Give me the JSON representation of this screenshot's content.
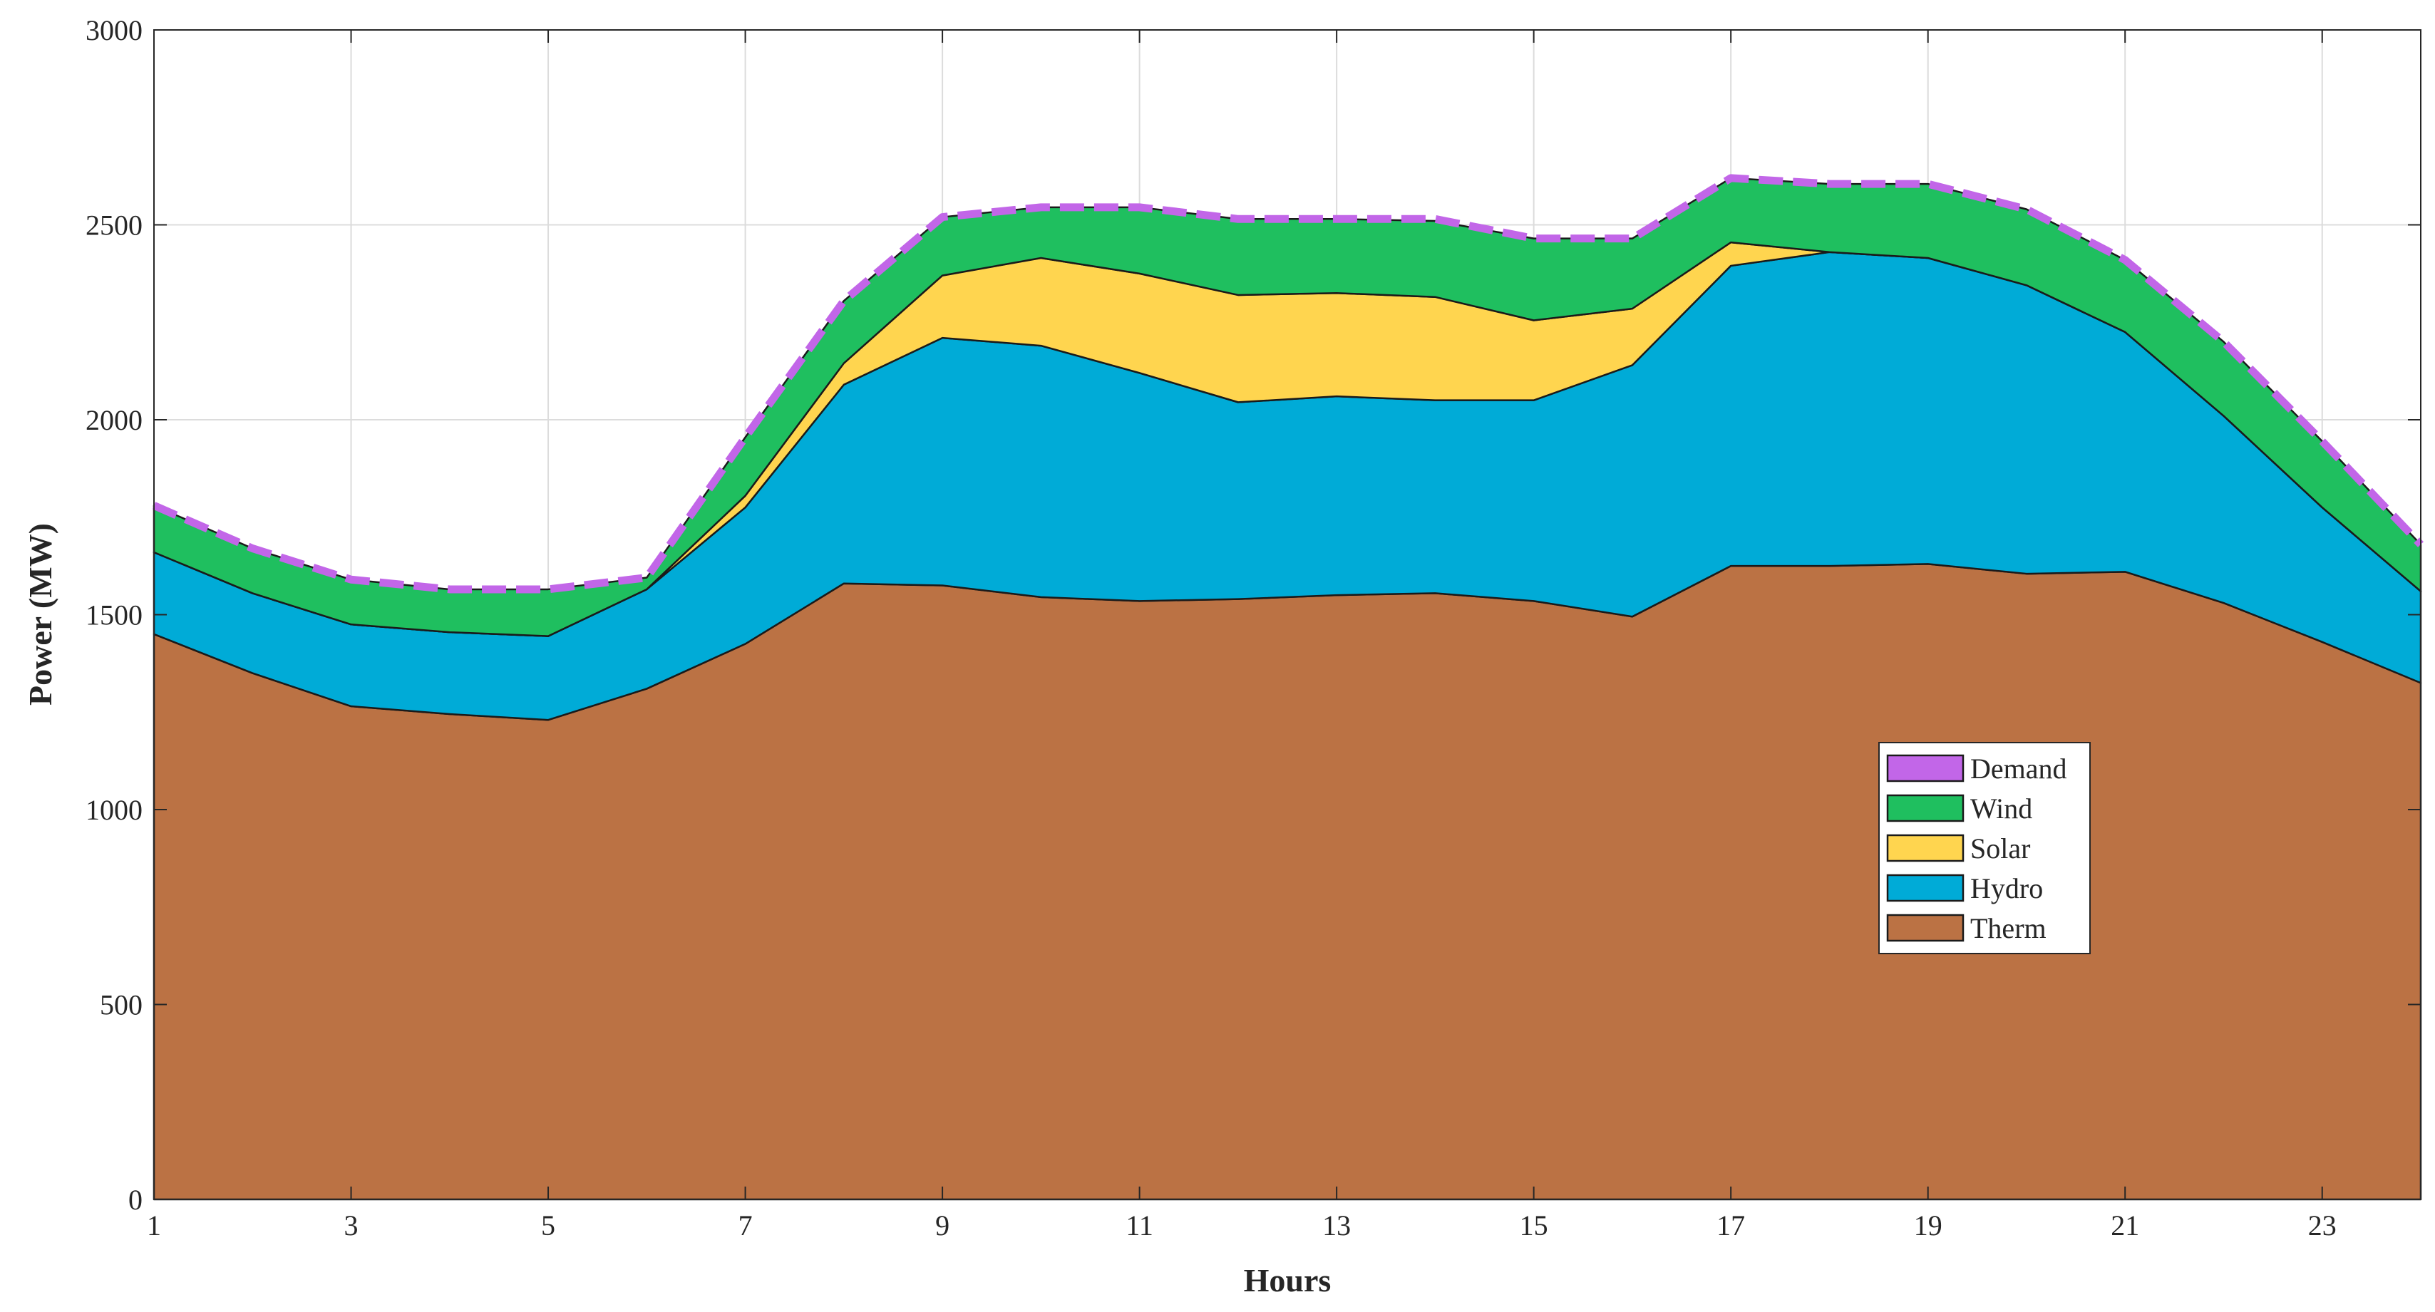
{
  "chart_data": {
    "type": "area",
    "stacked": true,
    "title": "",
    "xlabel": "Hours",
    "ylabel": "Power (MW)",
    "xlim": [
      1,
      24
    ],
    "ylim": [
      0,
      3000
    ],
    "xticks": [
      1,
      3,
      5,
      7,
      9,
      11,
      13,
      15,
      17,
      19,
      21,
      23
    ],
    "yticks": [
      0,
      500,
      1000,
      1500,
      2000,
      2500,
      3000
    ],
    "grid": true,
    "legend_position": "right, vertically centered",
    "x": [
      1,
      2,
      3,
      4,
      5,
      6,
      7,
      8,
      9,
      10,
      11,
      12,
      13,
      14,
      15,
      16,
      17,
      18,
      19,
      20,
      21,
      22,
      23,
      24
    ],
    "series": [
      {
        "name": "Therm",
        "color": "#BB7244",
        "values": [
          1450,
          1350,
          1265,
          1245,
          1230,
          1310,
          1425,
          1580,
          1575,
          1545,
          1535,
          1540,
          1550,
          1555,
          1535,
          1495,
          1625,
          1625,
          1630,
          1605,
          1610,
          1530,
          1430,
          1325
        ]
      },
      {
        "name": "Hydro",
        "color": "#00ABD7",
        "values": [
          210,
          205,
          210,
          210,
          215,
          255,
          350,
          510,
          635,
          645,
          585,
          505,
          510,
          495,
          515,
          645,
          770,
          805,
          785,
          740,
          615,
          480,
          345,
          235
        ]
      },
      {
        "name": "Solar",
        "color": "#FFD54F",
        "values": [
          0,
          0,
          0,
          0,
          0,
          0,
          30,
          55,
          160,
          225,
          255,
          275,
          265,
          265,
          205,
          145,
          60,
          0,
          0,
          0,
          0,
          0,
          0,
          0
        ]
      },
      {
        "name": "Wind",
        "color": "#1FBF5F",
        "values": [
          120,
          115,
          115,
          110,
          120,
          30,
          150,
          160,
          150,
          130,
          170,
          195,
          190,
          195,
          210,
          180,
          165,
          175,
          190,
          195,
          185,
          190,
          170,
          120
        ]
      }
    ],
    "demand": {
      "name": "Demand",
      "color": "#C266E8",
      "values": [
        1780,
        1670,
        1590,
        1565,
        1565,
        1595,
        1955,
        2305,
        2520,
        2545,
        2545,
        2515,
        2515,
        2515,
        2465,
        2465,
        2620,
        2605,
        2605,
        2540,
        2410,
        2200,
        1945,
        1680
      ]
    },
    "legend_order": [
      "Demand",
      "Wind",
      "Solar",
      "Hydro",
      "Therm"
    ]
  }
}
